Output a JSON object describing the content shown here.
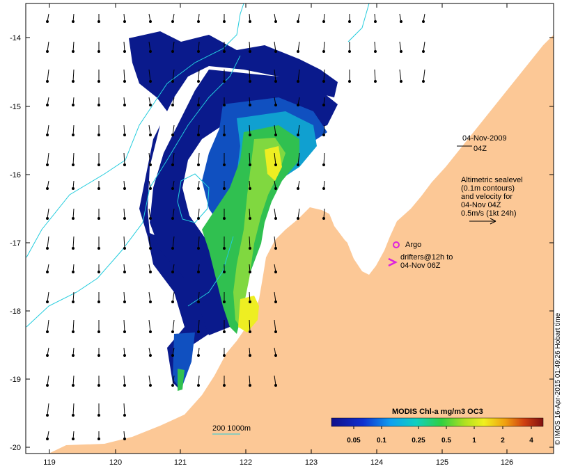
{
  "map": {
    "stamp_date": "04-Nov-2009",
    "stamp_time": "04Z",
    "legend_lines": [
      "Altimetric sealevel",
      "(0.1m contours)",
      "and velocity for",
      "04-Nov 04Z",
      "0.5m/s (1kt 24h)"
    ],
    "argo_label": "Argo",
    "drifter_label_1": "drifters@12h to",
    "drifter_label_2": "04-Nov 06Z",
    "depth_label": "200  1000m",
    "colorbar_title": "MODIS Chl-a mg/m3 OC3",
    "colorbar_ticks": [
      "0.05",
      "0.1",
      "0.25",
      "0.5",
      "1",
      "2",
      "4"
    ],
    "x_ticks": [
      "119",
      "120",
      "121",
      "122",
      "123",
      "124",
      "125",
      "126"
    ],
    "y_ticks": [
      "-14",
      "-15",
      "-16",
      "-17",
      "-18",
      "-19",
      "-20"
    ],
    "credit": "© IMOS 16-Apr-2015 01:49:26 Hobart time",
    "colors": {
      "land": "#fcc896",
      "contour": "#22ccdd",
      "argo": "#dd22dd",
      "chl_low": "#0a1a8c",
      "chl_mid": "#33cc33",
      "chl_high": "#eeee22"
    }
  }
}
